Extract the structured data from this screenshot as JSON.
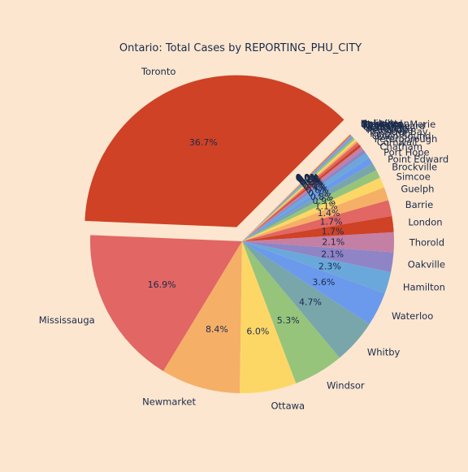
{
  "chart_data": {
    "type": "pie",
    "title": "Ontario: Total Cases by REPORTING_PHU_CITY",
    "start_angle_deg": 45,
    "direction": "counterclockwise",
    "explode": {
      "Toronto": 0.1
    },
    "slices": [
      {
        "label": "Toronto",
        "percent": 36.7,
        "pct_text": "36.7%",
        "color": "#CF4226"
      },
      {
        "label": "Mississauga",
        "percent": 16.9,
        "pct_text": "16.9%",
        "color": "#E16664"
      },
      {
        "label": "Newmarket",
        "percent": 8.4,
        "pct_text": "8.4%",
        "color": "#F5AF67"
      },
      {
        "label": "Ottawa",
        "percent": 6.0,
        "pct_text": "6.0%",
        "color": "#FDD766"
      },
      {
        "label": "Windsor",
        "percent": 5.3,
        "pct_text": "5.3%",
        "color": "#96C47B"
      },
      {
        "label": "Whitby",
        "percent": 4.7,
        "pct_text": "4.7%",
        "color": "#78A6AB"
      },
      {
        "label": "Waterloo",
        "percent": 3.6,
        "pct_text": "3.6%",
        "color": "#6B9AEC"
      },
      {
        "label": "Hamilton",
        "percent": 2.3,
        "pct_text": "2.3%",
        "color": "#6AA8DB"
      },
      {
        "label": "Oakville",
        "percent": 2.1,
        "pct_text": "2.1%",
        "color": "#8F84C6"
      },
      {
        "label": "Thorold",
        "percent": 2.1,
        "pct_text": "2.1%",
        "color": "#C47FA4"
      },
      {
        "label": "London",
        "percent": 1.7,
        "pct_text": "1.7%",
        "color": "#CF4226"
      },
      {
        "label": "Barrie",
        "percent": 1.7,
        "pct_text": "1.7%",
        "color": "#E16664"
      },
      {
        "label": "Guelph",
        "percent": 1.4,
        "pct_text": "1.4%",
        "color": "#F5AF67"
      },
      {
        "label": "Simcoe",
        "percent": 1.1,
        "pct_text": "1.1%",
        "color": "#FDD766"
      },
      {
        "label": "Brockville",
        "percent": 0.9,
        "pct_text": "0.9%",
        "color": "#96C47B"
      },
      {
        "label": "Point Edward",
        "percent": 0.8,
        "pct_text": "0.8%",
        "color": "#78A6AB"
      },
      {
        "label": "Port Hope",
        "percent": 0.7,
        "pct_text": "0.7%",
        "color": "#6B9AEC"
      },
      {
        "label": "Chatham",
        "percent": 0.6,
        "pct_text": "0.6%",
        "color": "#6AA8DB"
      },
      {
        "label": "Cornwall",
        "percent": 0.4,
        "pct_text": "0.4%",
        "color": "#8F84C6"
      },
      {
        "label": "Peterborough",
        "percent": 0.4,
        "pct_text": "0.4%",
        "color": "#C47FA4"
      },
      {
        "label": "Owen Sound",
        "percent": 0.3,
        "pct_text": "0.3%",
        "color": "#CF4226"
      },
      {
        "label": "Kingston",
        "percent": 0.3,
        "pct_text": "0.3%",
        "color": "#E16664"
      },
      {
        "label": "Thunder Bay",
        "percent": 0.2,
        "pct_text": "0.2%",
        "color": "#F5AF67"
      },
      {
        "label": "Pembroke",
        "percent": 0.2,
        "pct_text": "0.2%",
        "color": "#FDD766"
      },
      {
        "label": "Belleville",
        "percent": 0.2,
        "pct_text": "0.2%",
        "color": "#96C47B"
      },
      {
        "label": "Sudbury",
        "percent": 0.1,
        "pct_text": "0.1%",
        "color": "#78A6AB"
      },
      {
        "label": "North Bay",
        "percent": 0.1,
        "pct_text": "0.1%",
        "color": "#6B9AEC"
      },
      {
        "label": "New Liskeard",
        "percent": 0.1,
        "pct_text": "0.1%",
        "color": "#6AA8DB"
      },
      {
        "label": "Timmins",
        "percent": 0.05,
        "pct_text": "0.0%",
        "color": "#8F84C6"
      },
      {
        "label": "Kenora",
        "percent": 0.05,
        "pct_text": "0.0%",
        "color": "#C47FA4"
      },
      {
        "label": "Sault Ste. Marie",
        "percent": 0.05,
        "pct_text": "0.0%",
        "color": "#CF4226"
      },
      {
        "label": "Stratford",
        "percent": 0.05,
        "pct_text": "0.0%",
        "color": "#E16664"
      },
      {
        "label": "Oakville",
        "percent": 0.05,
        "pct_text": "0.0%",
        "color": "#F5AF67"
      },
      {
        "label": "Haliburton",
        "percent": 0.05,
        "pct_text": "0.0%",
        "color": "#FDD766"
      }
    ]
  }
}
